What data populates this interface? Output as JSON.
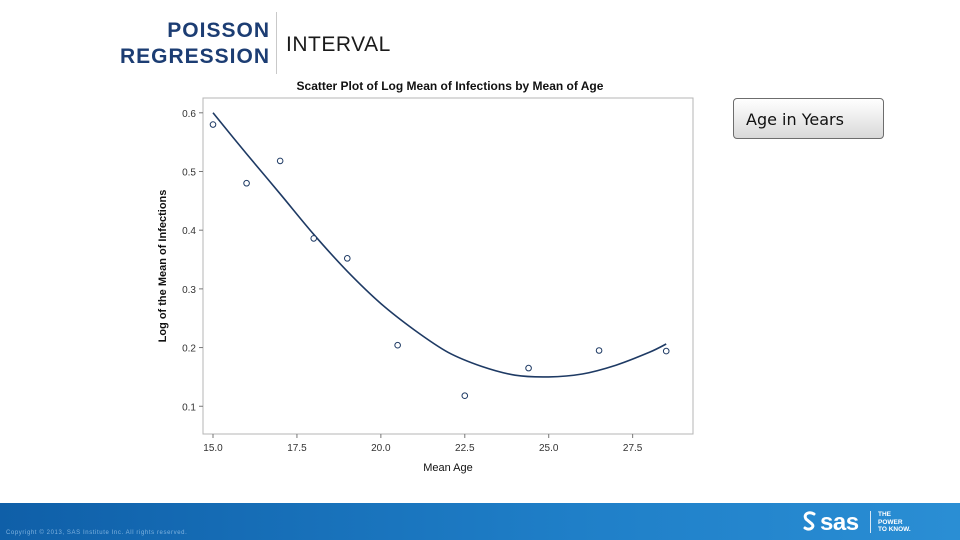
{
  "slide": {
    "title_line1": "POISSON",
    "title_line2": "REGRESSION",
    "subtitle": "INTERVAL",
    "callout": "Age in Years",
    "copyright": "Copyright © 2013, SAS Institute Inc. All rights reserved.",
    "brand": {
      "name": "sas",
      "tagline": [
        "THE",
        "POWER",
        "TO KNOW."
      ],
      "colors": {
        "title": "#1c3d73",
        "footer": "#1f7fc8",
        "line": "#1e3a64"
      }
    }
  },
  "chart_data": {
    "type": "scatter",
    "title": "Scatter Plot of Log Mean of Infections by Mean of Age",
    "xlabel": "Mean Age",
    "ylabel": "Log of the Mean of Infections",
    "xlim": [
      15.0,
      29.0
    ],
    "ylim": [
      0.08,
      0.615
    ],
    "x_ticks": [
      15.0,
      17.5,
      20.0,
      22.5,
      25.0,
      27.5
    ],
    "x_tick_labels": [
      "15.0",
      "17.5",
      "20.0",
      "22.5",
      "25.0",
      "27.5"
    ],
    "y_ticks": [
      0.6,
      0.5,
      0.4,
      0.3,
      0.2,
      0.1
    ],
    "y_tick_labels": [
      "0.6",
      "0.5",
      "0.4",
      "0.3",
      "0.2",
      "0.1"
    ],
    "points": {
      "x": [
        15.0,
        16.0,
        17.0,
        18.0,
        19.0,
        20.5,
        22.5,
        24.4,
        26.5,
        28.5
      ],
      "y": [
        0.58,
        0.48,
        0.518,
        0.386,
        0.352,
        0.204,
        0.118,
        0.165,
        0.195,
        0.194
      ]
    },
    "fit_curve": {
      "x": [
        15.0,
        16.0,
        17.0,
        18.0,
        19.0,
        20.0,
        21.0,
        22.0,
        23.0,
        24.0,
        25.0,
        26.0,
        27.0,
        28.0,
        28.5
      ],
      "y": [
        0.6,
        0.53,
        0.462,
        0.393,
        0.33,
        0.275,
        0.23,
        0.192,
        0.168,
        0.153,
        0.15,
        0.155,
        0.17,
        0.192,
        0.206
      ]
    }
  }
}
